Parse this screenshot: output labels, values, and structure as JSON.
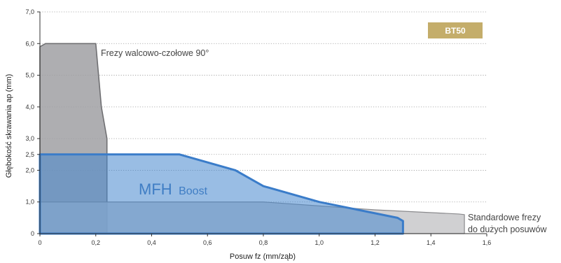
{
  "chart_data": {
    "type": "area",
    "xlabel": "Posuw fz (mm/ząb)",
    "ylabel": "Głębokość skrawania ap (mm)",
    "xlim": [
      0,
      1.6
    ],
    "ylim": [
      0,
      7.0
    ],
    "x_ticks": [
      "0",
      "0,2",
      "0,4",
      "0,6",
      "0,8",
      "1,0",
      "1,2",
      "1,4",
      "1,6"
    ],
    "y_ticks": [
      "0",
      "1,0",
      "2,0",
      "2,5",
      "3,0",
      "4,0",
      "5,0",
      "6,0",
      "7,0"
    ],
    "grid": "horizontal dotted",
    "badge": "BT50",
    "series": [
      {
        "label_lines": [
          "Frezy walcowo-czołowe 90°"
        ],
        "color": "#b9b9bb",
        "points": [
          [
            0,
            0
          ],
          [
            0,
            5.9
          ],
          [
            0.02,
            6.0
          ],
          [
            0.2,
            6.0
          ],
          [
            0.22,
            4.0
          ],
          [
            0.24,
            3.0
          ],
          [
            0.24,
            0
          ]
        ]
      },
      {
        "label_lines": [
          "Standardowe frezy",
          "do dużych posuwów"
        ],
        "color": "#d2d2d4",
        "points": [
          [
            0,
            0
          ],
          [
            0,
            1.0
          ],
          [
            0.8,
            1.0
          ],
          [
            1.2,
            0.75
          ],
          [
            1.5,
            0.62
          ],
          [
            1.52,
            0.6
          ],
          [
            1.52,
            0
          ],
          [
            0,
            0
          ]
        ]
      },
      {
        "label_main": "MFH",
        "label_sub": "Boost",
        "color": "#5a94d4",
        "points": [
          [
            0,
            0
          ],
          [
            0,
            2.5
          ],
          [
            0.5,
            2.5
          ],
          [
            0.7,
            2.0
          ],
          [
            0.8,
            1.5
          ],
          [
            1.0,
            1.0
          ],
          [
            1.28,
            0.5
          ],
          [
            1.3,
            0.4
          ],
          [
            1.3,
            0
          ],
          [
            0,
            0
          ]
        ]
      }
    ]
  }
}
